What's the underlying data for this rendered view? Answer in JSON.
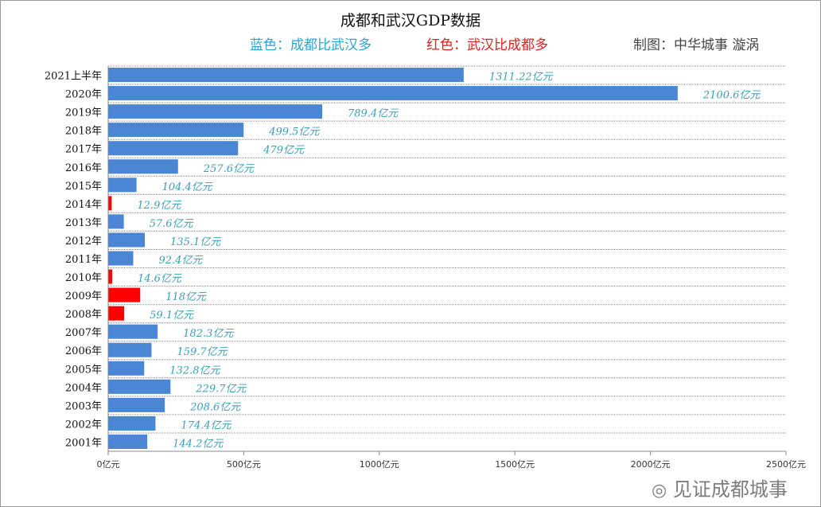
{
  "chart_data": {
    "type": "bar",
    "orientation": "horizontal",
    "title": "成都和武汉GDP数据",
    "legend_notes": [
      {
        "text": "蓝色：成都比武汉多",
        "color": "#2aa6d6"
      },
      {
        "text": "红色：武汉比成都多",
        "color": "#e02020"
      }
    ],
    "credit": "制图：中华城事 漩涡",
    "categories": [
      "2021上半年",
      "2020年",
      "2019年",
      "2018年",
      "2017年",
      "2016年",
      "2015年",
      "2014年",
      "2013年",
      "2012年",
      "2011年",
      "2010年",
      "2009年",
      "2008年",
      "2007年",
      "2006年",
      "2005年",
      "2004年",
      "2003年",
      "2002年",
      "2001年"
    ],
    "values": [
      1311.22,
      2100.6,
      789.4,
      499.5,
      479,
      257.6,
      104.4,
      12.9,
      57.6,
      135.1,
      92.4,
      14.6,
      118,
      59.1,
      182.3,
      159.7,
      132.8,
      229.7,
      208.6,
      174.4,
      144.2
    ],
    "data_labels": [
      "1311.22亿元",
      "2100.6亿元",
      "789.4亿元",
      "499.5亿元",
      "479亿元",
      "257.6亿元",
      "104.4亿元",
      "12.9亿元",
      "57.6亿元",
      "135.1亿元",
      "92.4亿元",
      "14.6亿元",
      "118亿元",
      "59.1亿元",
      "182.3亿元",
      "159.7亿元",
      "132.8亿元",
      "229.7亿元",
      "208.6亿元",
      "174.4亿元",
      "144.2亿元"
    ],
    "leader": [
      "成都",
      "成都",
      "成都",
      "成都",
      "成都",
      "成都",
      "成都",
      "武汉",
      "成都",
      "成都",
      "成都",
      "武汉",
      "武汉",
      "武汉",
      "成都",
      "成都",
      "成都",
      "成都",
      "成都",
      "成都",
      "成都"
    ],
    "colors": {
      "成都": "#4a86d4",
      "武汉": "#ff0000",
      "label": "#3a9fb5"
    },
    "xlim": [
      0,
      2500
    ],
    "xticks": [
      0,
      500,
      1000,
      1500,
      2000,
      2500
    ],
    "xtick_labels": [
      "0亿元",
      "500亿元",
      "1000亿元",
      "1500亿元",
      "2000亿元",
      "2500亿元"
    ],
    "grid": "horizontal dotted"
  },
  "watermark": "见证成都城事"
}
